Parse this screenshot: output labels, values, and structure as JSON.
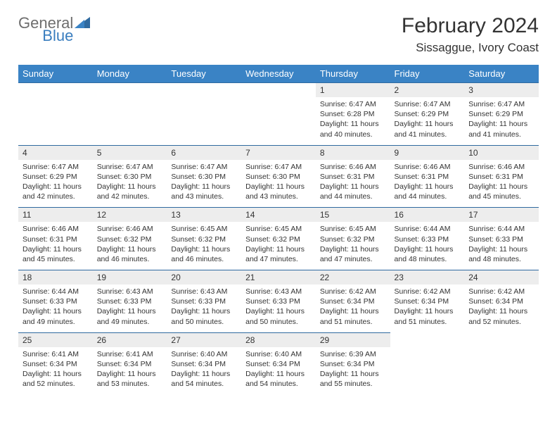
{
  "brand": {
    "part1": "General",
    "part2": "Blue"
  },
  "title": "February 2024",
  "location": "Sissaggue, Ivory Coast",
  "colors": {
    "header_bg": "#3a83c5",
    "header_text": "#ffffff",
    "row_divider": "#2f6aa0",
    "daynum_bg": "#ededed",
    "body_text": "#333333",
    "logo_gray": "#6e6e6e",
    "logo_blue": "#3a7ebf",
    "page_bg": "#ffffff"
  },
  "typography": {
    "title_fontsize": 30,
    "location_fontsize": 17,
    "dayname_fontsize": 13,
    "daynum_fontsize": 12,
    "body_fontsize": 10.5,
    "font_family": "Arial"
  },
  "daynames": [
    "Sunday",
    "Monday",
    "Tuesday",
    "Wednesday",
    "Thursday",
    "Friday",
    "Saturday"
  ],
  "weeks": [
    [
      {
        "n": "",
        "sr": "",
        "ss": "",
        "dl": ""
      },
      {
        "n": "",
        "sr": "",
        "ss": "",
        "dl": ""
      },
      {
        "n": "",
        "sr": "",
        "ss": "",
        "dl": ""
      },
      {
        "n": "",
        "sr": "",
        "ss": "",
        "dl": ""
      },
      {
        "n": "1",
        "sr": "Sunrise: 6:47 AM",
        "ss": "Sunset: 6:28 PM",
        "dl": "Daylight: 11 hours and 40 minutes."
      },
      {
        "n": "2",
        "sr": "Sunrise: 6:47 AM",
        "ss": "Sunset: 6:29 PM",
        "dl": "Daylight: 11 hours and 41 minutes."
      },
      {
        "n": "3",
        "sr": "Sunrise: 6:47 AM",
        "ss": "Sunset: 6:29 PM",
        "dl": "Daylight: 11 hours and 41 minutes."
      }
    ],
    [
      {
        "n": "4",
        "sr": "Sunrise: 6:47 AM",
        "ss": "Sunset: 6:29 PM",
        "dl": "Daylight: 11 hours and 42 minutes."
      },
      {
        "n": "5",
        "sr": "Sunrise: 6:47 AM",
        "ss": "Sunset: 6:30 PM",
        "dl": "Daylight: 11 hours and 42 minutes."
      },
      {
        "n": "6",
        "sr": "Sunrise: 6:47 AM",
        "ss": "Sunset: 6:30 PM",
        "dl": "Daylight: 11 hours and 43 minutes."
      },
      {
        "n": "7",
        "sr": "Sunrise: 6:47 AM",
        "ss": "Sunset: 6:30 PM",
        "dl": "Daylight: 11 hours and 43 minutes."
      },
      {
        "n": "8",
        "sr": "Sunrise: 6:46 AM",
        "ss": "Sunset: 6:31 PM",
        "dl": "Daylight: 11 hours and 44 minutes."
      },
      {
        "n": "9",
        "sr": "Sunrise: 6:46 AM",
        "ss": "Sunset: 6:31 PM",
        "dl": "Daylight: 11 hours and 44 minutes."
      },
      {
        "n": "10",
        "sr": "Sunrise: 6:46 AM",
        "ss": "Sunset: 6:31 PM",
        "dl": "Daylight: 11 hours and 45 minutes."
      }
    ],
    [
      {
        "n": "11",
        "sr": "Sunrise: 6:46 AM",
        "ss": "Sunset: 6:31 PM",
        "dl": "Daylight: 11 hours and 45 minutes."
      },
      {
        "n": "12",
        "sr": "Sunrise: 6:46 AM",
        "ss": "Sunset: 6:32 PM",
        "dl": "Daylight: 11 hours and 46 minutes."
      },
      {
        "n": "13",
        "sr": "Sunrise: 6:45 AM",
        "ss": "Sunset: 6:32 PM",
        "dl": "Daylight: 11 hours and 46 minutes."
      },
      {
        "n": "14",
        "sr": "Sunrise: 6:45 AM",
        "ss": "Sunset: 6:32 PM",
        "dl": "Daylight: 11 hours and 47 minutes."
      },
      {
        "n": "15",
        "sr": "Sunrise: 6:45 AM",
        "ss": "Sunset: 6:32 PM",
        "dl": "Daylight: 11 hours and 47 minutes."
      },
      {
        "n": "16",
        "sr": "Sunrise: 6:44 AM",
        "ss": "Sunset: 6:33 PM",
        "dl": "Daylight: 11 hours and 48 minutes."
      },
      {
        "n": "17",
        "sr": "Sunrise: 6:44 AM",
        "ss": "Sunset: 6:33 PM",
        "dl": "Daylight: 11 hours and 48 minutes."
      }
    ],
    [
      {
        "n": "18",
        "sr": "Sunrise: 6:44 AM",
        "ss": "Sunset: 6:33 PM",
        "dl": "Daylight: 11 hours and 49 minutes."
      },
      {
        "n": "19",
        "sr": "Sunrise: 6:43 AM",
        "ss": "Sunset: 6:33 PM",
        "dl": "Daylight: 11 hours and 49 minutes."
      },
      {
        "n": "20",
        "sr": "Sunrise: 6:43 AM",
        "ss": "Sunset: 6:33 PM",
        "dl": "Daylight: 11 hours and 50 minutes."
      },
      {
        "n": "21",
        "sr": "Sunrise: 6:43 AM",
        "ss": "Sunset: 6:33 PM",
        "dl": "Daylight: 11 hours and 50 minutes."
      },
      {
        "n": "22",
        "sr": "Sunrise: 6:42 AM",
        "ss": "Sunset: 6:34 PM",
        "dl": "Daylight: 11 hours and 51 minutes."
      },
      {
        "n": "23",
        "sr": "Sunrise: 6:42 AM",
        "ss": "Sunset: 6:34 PM",
        "dl": "Daylight: 11 hours and 51 minutes."
      },
      {
        "n": "24",
        "sr": "Sunrise: 6:42 AM",
        "ss": "Sunset: 6:34 PM",
        "dl": "Daylight: 11 hours and 52 minutes."
      }
    ],
    [
      {
        "n": "25",
        "sr": "Sunrise: 6:41 AM",
        "ss": "Sunset: 6:34 PM",
        "dl": "Daylight: 11 hours and 52 minutes."
      },
      {
        "n": "26",
        "sr": "Sunrise: 6:41 AM",
        "ss": "Sunset: 6:34 PM",
        "dl": "Daylight: 11 hours and 53 minutes."
      },
      {
        "n": "27",
        "sr": "Sunrise: 6:40 AM",
        "ss": "Sunset: 6:34 PM",
        "dl": "Daylight: 11 hours and 54 minutes."
      },
      {
        "n": "28",
        "sr": "Sunrise: 6:40 AM",
        "ss": "Sunset: 6:34 PM",
        "dl": "Daylight: 11 hours and 54 minutes."
      },
      {
        "n": "29",
        "sr": "Sunrise: 6:39 AM",
        "ss": "Sunset: 6:34 PM",
        "dl": "Daylight: 11 hours and 55 minutes."
      },
      {
        "n": "",
        "sr": "",
        "ss": "",
        "dl": ""
      },
      {
        "n": "",
        "sr": "",
        "ss": "",
        "dl": ""
      }
    ]
  ]
}
